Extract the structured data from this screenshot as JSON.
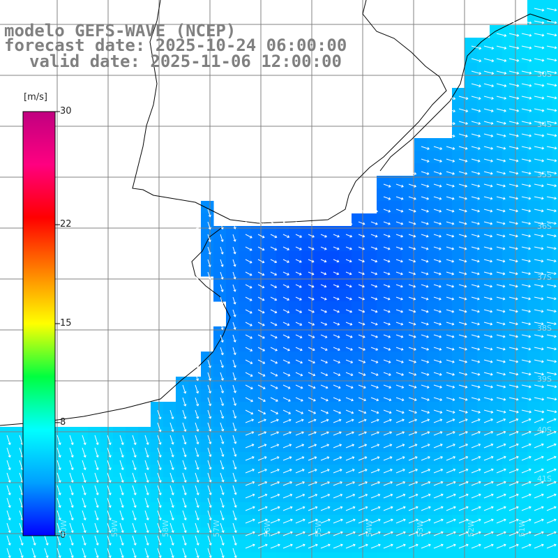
{
  "title": {
    "line1": "modelo GEFS-WAVE (NCEP)",
    "line2": "forecast date: 2025-10-24 06:00:00",
    "line3": "valid date: 2025-11-06 12:00:00"
  },
  "colorbar": {
    "unit": "[m/s]",
    "ticks": [
      {
        "value": 30,
        "label": "30"
      },
      {
        "value": 22,
        "label": "22"
      },
      {
        "value": 15,
        "label": "15"
      },
      {
        "value": 8,
        "label": "8"
      },
      {
        "value": 0,
        "label": "0"
      }
    ],
    "min": 0,
    "max": 30,
    "colors": [
      "#0000ff",
      "#00a0ff",
      "#00ffff",
      "#00ff40",
      "#ffff00",
      "#ff8000",
      "#ff0000",
      "#ff0080",
      "#c00080"
    ]
  },
  "map_labels": {
    "lat_labels": [
      "30S",
      "34S",
      "35S",
      "36S",
      "37S",
      "38S",
      "39S",
      "40S",
      "41S"
    ],
    "lon_labels": [
      "60W",
      "59W",
      "58W",
      "57W",
      "56W",
      "55W",
      "54W",
      "53W",
      "52W",
      "51W"
    ]
  },
  "colors": {
    "land": "#ffffff",
    "grid": "#808080",
    "coast": "#000000",
    "arrow": "#ffffff",
    "title": "#808080"
  }
}
